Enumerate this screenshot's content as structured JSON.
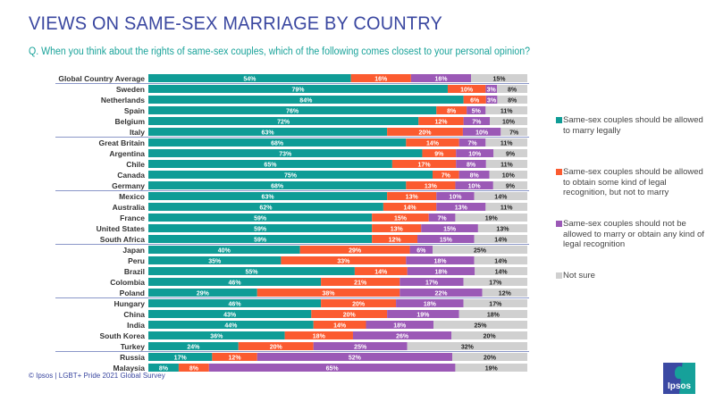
{
  "header": {
    "title": "VIEWS ON SAME-SEX MARRIAGE BY COUNTRY",
    "subtitle": "Q. When you think about the rights of same-sex couples, which of the following comes closest to your personal opinion?"
  },
  "footer": {
    "source": "© Ipsos | LGBT+ Pride 2021 Global Survey",
    "logo_text": "Ipsos"
  },
  "colors": {
    "marry": "#0f9c96",
    "legal_recognition": "#fb5b30",
    "not_allowed": "#9b59b6",
    "not_sure": "#d0d0d0",
    "separator": "#8a96c8",
    "label_dark": "#222222",
    "label_light": "#ffffff"
  },
  "chart_data": {
    "type": "bar",
    "orientation": "horizontal-stacked-100",
    "title": "VIEWS ON SAME-SEX MARRIAGE BY COUNTRY",
    "xlabel": "",
    "ylabel": "",
    "xlim": [
      0,
      100
    ],
    "grid": false,
    "legend_position": "right",
    "categories": [
      "Global Country Average",
      "Sweden",
      "Netherlands",
      "Spain",
      "Belgium",
      "Italy",
      "Great Britain",
      "Argentina",
      "Chile",
      "Canada",
      "Germany",
      "Mexico",
      "Australia",
      "France",
      "United States",
      "South Africa",
      "Japan",
      "Peru",
      "Brazil",
      "Colombia",
      "Poland",
      "Hungary",
      "China",
      "India",
      "South Korea",
      "Turkey",
      "Russia",
      "Malaysia"
    ],
    "group_separators_after": [
      "Global Country Average",
      "Italy",
      "Germany",
      "South Africa",
      "Poland",
      "Turkey"
    ],
    "series": [
      {
        "name": "Same-sex couples should be allowed to marry legally",
        "key": "marry",
        "values": [
          54,
          79,
          84,
          76,
          72,
          63,
          68,
          73,
          65,
          75,
          68,
          63,
          62,
          59,
          59,
          59,
          40,
          35,
          55,
          46,
          29,
          46,
          43,
          44,
          36,
          24,
          17,
          8
        ]
      },
      {
        "name": "Same-sex couples should be allowed to obtain some kind of legal recognition, but not to marry",
        "key": "legal_recognition",
        "values": [
          16,
          10,
          6,
          8,
          12,
          20,
          14,
          9,
          17,
          7,
          13,
          13,
          14,
          15,
          13,
          12,
          29,
          33,
          14,
          21,
          38,
          20,
          20,
          14,
          18,
          20,
          12,
          8
        ]
      },
      {
        "name": "Same-sex couples should not be allowed to marry or obtain any kind of legal recognition",
        "key": "not_allowed",
        "values": [
          16,
          3,
          3,
          5,
          7,
          10,
          7,
          10,
          8,
          8,
          10,
          10,
          13,
          7,
          15,
          15,
          6,
          18,
          18,
          17,
          22,
          18,
          19,
          18,
          26,
          25,
          52,
          65
        ]
      },
      {
        "name": "Not sure",
        "key": "not_sure",
        "values": [
          15,
          8,
          8,
          11,
          10,
          7,
          11,
          9,
          11,
          10,
          9,
          14,
          11,
          19,
          13,
          14,
          25,
          14,
          14,
          17,
          12,
          17,
          18,
          25,
          20,
          32,
          20,
          19
        ]
      }
    ],
    "value_suffix": "%"
  }
}
